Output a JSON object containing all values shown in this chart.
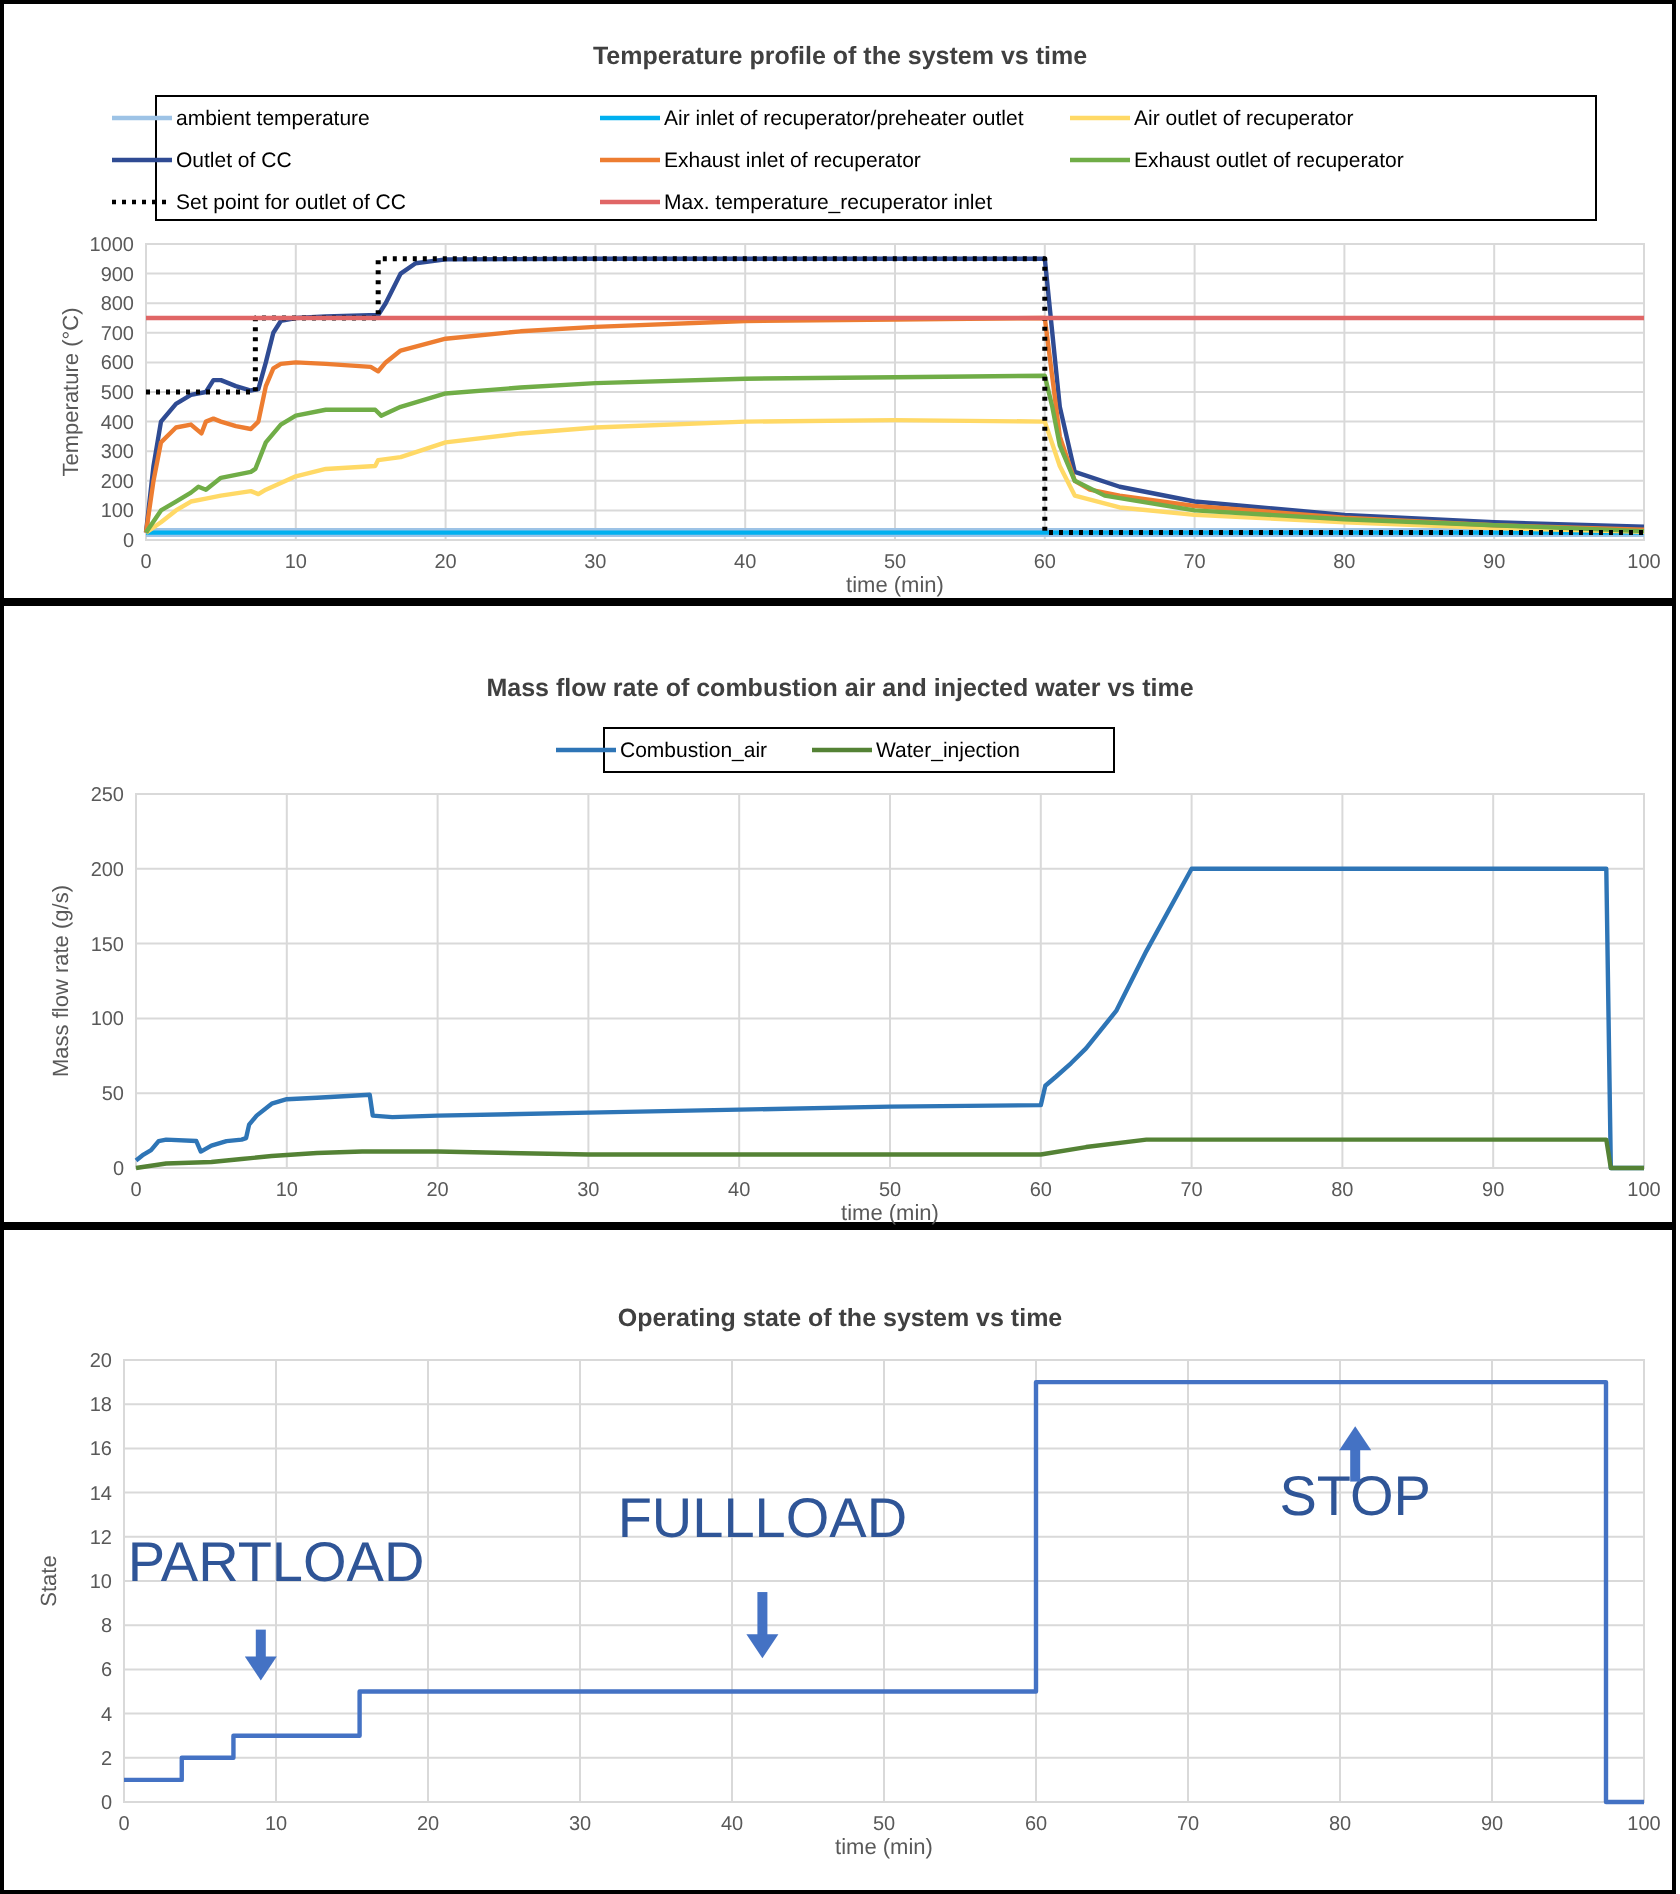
{
  "chart_data": [
    {
      "type": "line",
      "title": "Temperature profile of the system vs time",
      "xlabel": "time (min)",
      "ylabel": "Temperature (°C)",
      "xlim": [
        0,
        100
      ],
      "xticks": [
        0,
        10,
        20,
        30,
        40,
        50,
        60,
        70,
        80,
        90,
        100
      ],
      "ylim": [
        0,
        1000
      ],
      "yticks": [
        0,
        100,
        200,
        300,
        400,
        500,
        600,
        700,
        800,
        900,
        1000
      ],
      "grid": true,
      "legend": "top",
      "series": [
        {
          "name": "ambient temperature",
          "color": "#9dc3e6",
          "x": [
            0,
            100
          ],
          "values": [
            25,
            25
          ]
        },
        {
          "name": "Air inlet of recuperator/preheater outlet",
          "color": "#00b0f0",
          "x": [
            0,
            100
          ],
          "values": [
            25,
            25
          ]
        },
        {
          "name": "Air outlet of recuperator",
          "color": "#ffd966",
          "x": [
            0,
            1,
            2,
            3,
            4,
            5,
            7,
            7.5,
            8,
            10,
            12,
            15.3,
            15.5,
            17,
            20,
            25,
            30,
            40,
            50,
            60,
            61,
            62,
            65,
            70,
            80,
            90,
            100
          ],
          "values": [
            25,
            60,
            100,
            130,
            140,
            150,
            165,
            155,
            170,
            215,
            240,
            250,
            270,
            280,
            330,
            360,
            380,
            400,
            405,
            400,
            250,
            150,
            110,
            85,
            60,
            40,
            28
          ]
        },
        {
          "name": "Outlet of CC",
          "color": "#2f4b93",
          "x": [
            0,
            0.5,
            1,
            2,
            3,
            4,
            4.5,
            5,
            6,
            7,
            7.5,
            8,
            8.5,
            9,
            10,
            12,
            15.5,
            16,
            17,
            18,
            20,
            30,
            60,
            60.5,
            61,
            62,
            65,
            70,
            80,
            90,
            100
          ],
          "values": [
            25,
            250,
            400,
            460,
            490,
            500,
            540,
            540,
            520,
            505,
            510,
            600,
            700,
            740,
            750,
            755,
            760,
            800,
            900,
            935,
            948,
            950,
            950,
            700,
            450,
            230,
            180,
            130,
            85,
            60,
            45
          ]
        },
        {
          "name": "Exhaust inlet of recuperator",
          "color": "#ed7d31",
          "x": [
            0,
            0.5,
            1,
            2,
            3,
            3.7,
            4,
            4.5,
            5,
            6,
            7,
            7.5,
            8,
            8.5,
            9,
            10,
            12,
            15,
            15.5,
            16,
            17,
            20,
            25,
            30,
            40,
            50,
            60,
            60.5,
            61,
            62,
            63,
            65,
            70,
            80,
            90,
            100
          ],
          "values": [
            25,
            200,
            330,
            380,
            390,
            360,
            400,
            410,
            400,
            385,
            375,
            400,
            520,
            580,
            595,
            600,
            595,
            585,
            570,
            600,
            640,
            680,
            705,
            720,
            740,
            745,
            750,
            550,
            350,
            200,
            170,
            150,
            115,
            75,
            50,
            35
          ]
        },
        {
          "name": "Exhaust outlet of recuperator",
          "color": "#70ad47",
          "x": [
            0,
            1,
            2,
            3,
            3.5,
            4,
            4.5,
            5,
            7,
            7.3,
            8,
            9,
            10,
            12,
            15.3,
            15.7,
            17,
            20,
            25,
            30,
            40,
            50,
            60,
            60.5,
            61,
            62,
            64,
            70,
            80,
            90,
            100
          ],
          "values": [
            25,
            100,
            130,
            160,
            180,
            170,
            190,
            210,
            230,
            240,
            330,
            390,
            420,
            440,
            440,
            420,
            450,
            495,
            515,
            530,
            545,
            550,
            555,
            450,
            320,
            200,
            150,
            100,
            70,
            50,
            30
          ]
        },
        {
          "name": "Set point for outlet of CC",
          "type": "step",
          "color": "#000000",
          "line_style": "dotted",
          "x": [
            0,
            7.3,
            15.5,
            60,
            100
          ],
          "values": [
            500,
            750,
            950,
            25,
            25
          ]
        },
        {
          "name": "Max. temperature_recuperator inlet",
          "color": "#e06666",
          "x": [
            0,
            100
          ],
          "values": [
            750,
            750
          ]
        }
      ]
    },
    {
      "type": "line",
      "title": "Mass flow rate of combustion air and injected water vs time",
      "xlabel": "time (min)",
      "ylabel": "Mass flow rate (g/s)",
      "xlim": [
        0,
        100
      ],
      "xticks": [
        0,
        10,
        20,
        30,
        40,
        50,
        60,
        70,
        80,
        90,
        100
      ],
      "ylim": [
        0,
        250
      ],
      "yticks": [
        0,
        50,
        100,
        150,
        200,
        250
      ],
      "grid": true,
      "legend": "top",
      "series": [
        {
          "name": "Combustion_air",
          "color": "#2e75b6",
          "x": [
            0,
            0.5,
            1,
            1.5,
            2,
            4,
            4.3,
            5,
            6,
            7,
            7.3,
            7.5,
            8,
            9,
            10,
            12,
            15.5,
            15.7,
            17,
            20,
            30,
            40,
            50,
            60,
            60.3,
            61,
            62,
            63,
            65,
            67,
            70,
            97.5,
            97.8,
            100
          ],
          "values": [
            5,
            9,
            12,
            18,
            19,
            18,
            11,
            15,
            18,
            19,
            20,
            29,
            35,
            43,
            46,
            47,
            49,
            35,
            34,
            35,
            37,
            39,
            41,
            42,
            55,
            61,
            70,
            80,
            105,
            145,
            200,
            200,
            0,
            0
          ]
        },
        {
          "name": "Water_injection",
          "color": "#548235",
          "x": [
            0,
            2,
            5,
            7,
            9,
            12,
            15,
            20,
            30,
            50,
            60,
            63,
            67,
            97.5,
            97.8,
            100
          ],
          "values": [
            0,
            3,
            4,
            6,
            8,
            10,
            11,
            11,
            9,
            9,
            9,
            14,
            19,
            19,
            0,
            0
          ]
        }
      ]
    },
    {
      "type": "step",
      "title": "Operating state of the system vs time",
      "xlabel": "time (min)",
      "ylabel": "State",
      "xlim": [
        0,
        100
      ],
      "xticks": [
        0,
        10,
        20,
        30,
        40,
        50,
        60,
        70,
        80,
        90,
        100
      ],
      "ylim": [
        0,
        20
      ],
      "yticks": [
        0,
        2,
        4,
        6,
        8,
        10,
        12,
        14,
        16,
        18,
        20
      ],
      "grid": true,
      "series": [
        {
          "color": "#4472c4",
          "x": [
            0,
            3.8,
            7.2,
            15.5,
            60,
            97.5,
            100
          ],
          "values": [
            1,
            2,
            3,
            5,
            19,
            0,
            0
          ]
        }
      ],
      "annotations": [
        "PARTLOAD",
        "FULLLOAD",
        "STOP"
      ]
    }
  ]
}
